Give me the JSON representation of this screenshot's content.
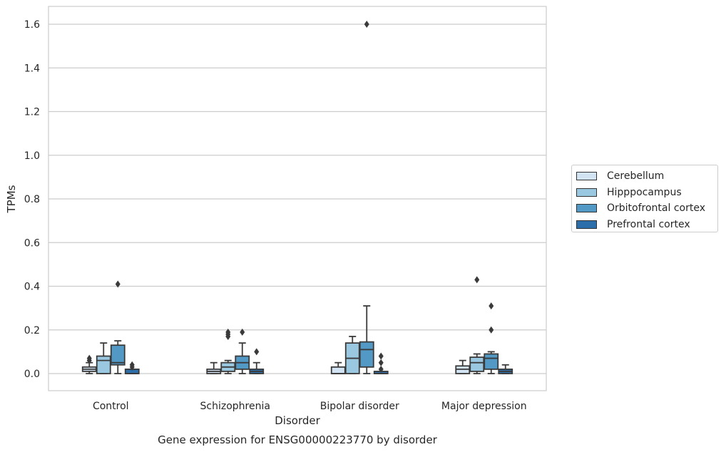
{
  "chart_data": {
    "type": "boxplot",
    "title": "Gene expression for ENSG00000223770 by disorder",
    "xlabel": "Disorder",
    "ylabel": "TPMs",
    "ylim": [
      -0.08,
      1.68
    ],
    "yticks": [
      "0.0",
      "0.2",
      "0.4",
      "0.6",
      "0.8",
      "1.0",
      "1.2",
      "1.4",
      "1.6"
    ],
    "grid": true,
    "legend_position": "center-right outside",
    "categories": [
      "Control",
      "Schizophrenia",
      "Bipolar disorder",
      "Major depression"
    ],
    "series": [
      {
        "name": "Cerebellum",
        "color": "#d2e3f3",
        "boxes": [
          {
            "q1": 0.01,
            "median": 0.02,
            "q3": 0.03,
            "whislo": 0.0,
            "whishi": 0.05,
            "fliers": [
              0.07,
              0.06
            ]
          },
          {
            "q1": 0.0,
            "median": 0.01,
            "q3": 0.02,
            "whislo": 0.0,
            "whishi": 0.05,
            "fliers": []
          },
          {
            "q1": 0.0,
            "median": 0.0,
            "q3": 0.03,
            "whislo": 0.0,
            "whishi": 0.05,
            "fliers": []
          },
          {
            "q1": 0.0,
            "median": 0.02,
            "q3": 0.035,
            "whislo": 0.0,
            "whishi": 0.06,
            "fliers": []
          }
        ]
      },
      {
        "name": "Hipppocampus",
        "color": "#9ac8e0",
        "boxes": [
          {
            "q1": 0.0,
            "median": 0.06,
            "q3": 0.08,
            "whislo": 0.0,
            "whishi": 0.14,
            "fliers": []
          },
          {
            "q1": 0.01,
            "median": 0.03,
            "q3": 0.05,
            "whislo": 0.0,
            "whishi": 0.06,
            "fliers": [
              0.19,
              0.18,
              0.17
            ]
          },
          {
            "q1": 0.0,
            "median": 0.07,
            "q3": 0.14,
            "whislo": 0.0,
            "whishi": 0.17,
            "fliers": []
          },
          {
            "q1": 0.01,
            "median": 0.05,
            "q3": 0.075,
            "whislo": 0.0,
            "whishi": 0.09,
            "fliers": [
              0.43
            ]
          }
        ]
      },
      {
        "name": "Orbitofrontal cortex",
        "color": "#5399c6",
        "boxes": [
          {
            "q1": 0.04,
            "median": 0.05,
            "q3": 0.13,
            "whislo": 0.0,
            "whishi": 0.15,
            "fliers": [
              0.41
            ]
          },
          {
            "q1": 0.02,
            "median": 0.05,
            "q3": 0.08,
            "whislo": 0.0,
            "whishi": 0.14,
            "fliers": [
              0.19
            ]
          },
          {
            "q1": 0.03,
            "median": 0.11,
            "q3": 0.145,
            "whislo": 0.0,
            "whishi": 0.31,
            "fliers": [
              1.6
            ]
          },
          {
            "q1": 0.02,
            "median": 0.07,
            "q3": 0.09,
            "whislo": 0.0,
            "whishi": 0.1,
            "fliers": [
              0.31,
              0.2
            ]
          }
        ]
      },
      {
        "name": "Prefrontal cortex",
        "color": "#2b6ea9",
        "boxes": [
          {
            "q1": 0.0,
            "median": 0.0,
            "q3": 0.02,
            "whislo": 0.0,
            "whishi": 0.02,
            "fliers": [
              0.04,
              0.03
            ]
          },
          {
            "q1": 0.0,
            "median": 0.01,
            "q3": 0.02,
            "whislo": 0.0,
            "whishi": 0.05,
            "fliers": [
              0.1
            ]
          },
          {
            "q1": 0.0,
            "median": 0.0,
            "q3": 0.01,
            "whislo": 0.0,
            "whishi": 0.01,
            "fliers": [
              0.08,
              0.05,
              0.02
            ]
          },
          {
            "q1": 0.0,
            "median": 0.01,
            "q3": 0.02,
            "whislo": 0.0,
            "whishi": 0.04,
            "fliers": []
          }
        ]
      }
    ]
  }
}
